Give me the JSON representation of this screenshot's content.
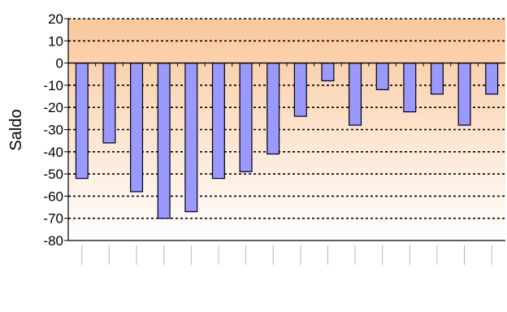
{
  "chart_data": {
    "type": "bar",
    "ylabel": "Saldo",
    "xlabel": "",
    "ylim": [
      -80,
      20
    ],
    "yticks": [
      20,
      10,
      0,
      -10,
      -20,
      -30,
      -40,
      -50,
      -60,
      -70,
      -80
    ],
    "grid": true,
    "background_gradient": [
      "#f9c79a",
      "#ffffff"
    ],
    "bar_color": "#9999ff",
    "values": [
      -52,
      -36,
      -58,
      -70,
      -67,
      -52,
      -49,
      -41,
      -24,
      -8,
      -28,
      -12,
      -22,
      -14,
      -28,
      -14
    ]
  }
}
